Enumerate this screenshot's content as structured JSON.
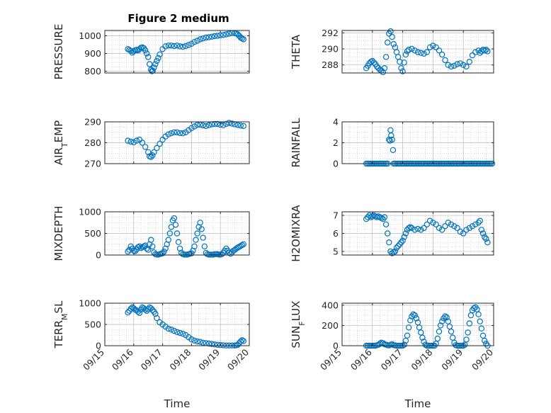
{
  "figure": {
    "title": "Figure 2 medium",
    "marker_color": "#0072BD",
    "axes_color": "#262626",
    "grid_color": "#b8b8b8"
  },
  "chart_data": [
    {
      "type": "scatter",
      "ylabel": "PRESSURE",
      "xlabel": "",
      "xlim": [
        15,
        20
      ],
      "ylim": [
        790,
        1030
      ],
      "yticks": [
        800,
        900,
        1000
      ],
      "xticks": [],
      "grid": true,
      "marker": "open-circle",
      "x": [
        15.8,
        15.85,
        15.9,
        15.95,
        16.0,
        16.05,
        16.1,
        16.15,
        16.2,
        16.25,
        16.3,
        16.35,
        16.4,
        16.45,
        16.5,
        16.55,
        16.6,
        16.63,
        16.66,
        16.7,
        16.75,
        16.8,
        16.85,
        16.9,
        17.0,
        17.1,
        17.2,
        17.3,
        17.4,
        17.5,
        17.6,
        17.7,
        17.8,
        17.9,
        18.0,
        18.1,
        18.2,
        18.3,
        18.4,
        18.5,
        18.6,
        18.7,
        18.8,
        18.9,
        19.0,
        19.1,
        19.2,
        19.3,
        19.4,
        19.5,
        19.55,
        19.6,
        19.65,
        19.7,
        19.75,
        19.8
      ],
      "y": [
        925,
        920,
        915,
        905,
        912,
        918,
        920,
        917,
        925,
        932,
        935,
        930,
        918,
        900,
        880,
        840,
        808,
        800,
        803,
        820,
        840,
        858,
        875,
        895,
        925,
        940,
        945,
        945,
        942,
        945,
        940,
        938,
        942,
        948,
        955,
        965,
        972,
        980,
        985,
        990,
        992,
        995,
        998,
        1000,
        1003,
        1005,
        1008,
        1012,
        1015,
        1015,
        1012,
        1008,
        1000,
        990,
        985,
        980
      ]
    },
    {
      "type": "scatter",
      "ylabel": "THETA",
      "xlabel": "",
      "xlim": [
        15,
        20
      ],
      "ylim": [
        287.0,
        292.3
      ],
      "yticks": [
        288,
        290,
        292
      ],
      "xticks": [],
      "grid": true,
      "marker": "open-circle",
      "x": [
        15.8,
        15.85,
        15.9,
        15.95,
        16.0,
        16.05,
        16.1,
        16.15,
        16.2,
        16.25,
        16.3,
        16.35,
        16.4,
        16.45,
        16.5,
        16.55,
        16.6,
        16.65,
        16.7,
        16.75,
        16.8,
        16.85,
        16.9,
        16.95,
        17.0,
        17.05,
        17.1,
        17.15,
        17.2,
        17.3,
        17.4,
        17.5,
        17.6,
        17.7,
        17.8,
        17.9,
        18.0,
        18.1,
        18.2,
        18.3,
        18.4,
        18.5,
        18.6,
        18.7,
        18.8,
        18.9,
        19.0,
        19.1,
        19.2,
        19.3,
        19.4,
        19.5,
        19.55,
        19.6,
        19.65,
        19.7,
        19.75,
        19.8
      ],
      "y": [
        287.6,
        287.9,
        288.2,
        288.4,
        288.5,
        288.3,
        288.1,
        287.8,
        287.6,
        287.4,
        287.3,
        287.1,
        287.6,
        289.0,
        290.8,
        291.9,
        292.2,
        291.5,
        290.6,
        290.2,
        289.6,
        289.0,
        288.4,
        287.6,
        287.2,
        288.3,
        289.3,
        289.7,
        289.9,
        290.0,
        289.8,
        289.6,
        289.5,
        289.4,
        289.6,
        290.2,
        290.4,
        290.2,
        289.8,
        289.3,
        288.6,
        288.0,
        287.8,
        287.9,
        288.1,
        288.2,
        288.0,
        287.8,
        288.4,
        289.2,
        289.6,
        289.8,
        289.5,
        289.7,
        289.9,
        289.8,
        289.9,
        289.7
      ]
    },
    {
      "type": "scatter",
      "ylabel": "AIR_TEMP",
      "xlabel": "",
      "xlim": [
        15,
        20
      ],
      "ylim": [
        270,
        290
      ],
      "yticks": [
        270,
        280,
        290
      ],
      "xticks": [],
      "grid": true,
      "marker": "open-circle",
      "x": [
        15.8,
        15.9,
        16.0,
        16.1,
        16.2,
        16.3,
        16.4,
        16.5,
        16.55,
        16.6,
        16.65,
        16.7,
        16.8,
        16.9,
        17.0,
        17.1,
        17.2,
        17.3,
        17.4,
        17.5,
        17.6,
        17.7,
        17.8,
        17.9,
        18.0,
        18.1,
        18.2,
        18.3,
        18.4,
        18.5,
        18.6,
        18.7,
        18.8,
        18.9,
        19.0,
        19.1,
        19.2,
        19.3,
        19.4,
        19.5,
        19.6,
        19.7,
        19.8
      ],
      "y": [
        281.0,
        280.5,
        280.2,
        281.0,
        281.5,
        280.0,
        278.0,
        275.5,
        273.5,
        273.2,
        274.0,
        275.5,
        277.5,
        279.5,
        281.5,
        283.0,
        284.0,
        284.5,
        285.0,
        285.0,
        284.6,
        284.5,
        285.0,
        286.0,
        287.0,
        287.8,
        288.5,
        288.6,
        288.3,
        288.0,
        288.4,
        288.8,
        289.0,
        289.0,
        288.6,
        288.4,
        289.0,
        289.5,
        289.2,
        288.8,
        288.5,
        288.2,
        288.0
      ]
    },
    {
      "type": "scatter",
      "ylabel": "RAINFALL",
      "xlabel": "",
      "xlim": [
        15,
        20
      ],
      "ylim": [
        0,
        4
      ],
      "yticks": [
        0,
        2,
        4
      ],
      "xticks": [],
      "grid": true,
      "marker": "open-circle",
      "x": [
        15.8,
        15.85,
        15.9,
        15.95,
        16.0,
        16.05,
        16.1,
        16.15,
        16.2,
        16.25,
        16.3,
        16.35,
        16.4,
        16.45,
        16.5,
        16.55,
        16.58,
        16.6,
        16.62,
        16.65,
        16.68,
        16.7,
        16.75,
        16.8,
        16.85,
        16.9,
        16.95,
        17.0,
        17.05,
        17.1,
        17.15,
        17.2,
        17.25,
        17.3,
        17.35,
        17.4,
        17.45,
        17.5,
        17.55,
        17.6,
        17.65,
        17.7,
        17.75,
        17.8,
        17.85,
        17.9,
        17.95,
        18.0,
        18.05,
        18.1,
        18.15,
        18.2,
        18.25,
        18.3,
        18.35,
        18.4,
        18.45,
        18.5,
        18.55,
        18.6,
        18.65,
        18.7,
        18.75,
        18.8,
        18.85,
        18.9,
        18.95,
        19.0,
        19.05,
        19.1,
        19.15,
        19.2,
        19.25,
        19.3,
        19.35,
        19.4,
        19.45,
        19.5,
        19.55,
        19.6,
        19.65,
        19.7,
        19.75,
        19.8,
        19.85,
        19.9,
        19.95
      ],
      "y": [
        0,
        0,
        0,
        0,
        0,
        0,
        0,
        0,
        0,
        0,
        0,
        0,
        0,
        0,
        0,
        2.3,
        2.2,
        3.2,
        2.7,
        2.3,
        1.3,
        0,
        0,
        0,
        0,
        0,
        0,
        0,
        0,
        0,
        0,
        0,
        0,
        0,
        0,
        0,
        0,
        0,
        0,
        0,
        0,
        0,
        0,
        0,
        0,
        0,
        0,
        0,
        0,
        0,
        0,
        0,
        0,
        0,
        0,
        0,
        0,
        0,
        0,
        0,
        0,
        0,
        0,
        0,
        0,
        0,
        0,
        0,
        0,
        0,
        0,
        0,
        0,
        0,
        0,
        0,
        0,
        0,
        0,
        0,
        0,
        0,
        0,
        0,
        0,
        0,
        0
      ]
    },
    {
      "type": "scatter",
      "ylabel": "MIXDEPTH",
      "xlabel": "",
      "xlim": [
        15,
        20
      ],
      "ylim": [
        0,
        1000
      ],
      "yticks": [
        0,
        500,
        1000
      ],
      "xticks": [],
      "grid": true,
      "marker": "open-circle",
      "x": [
        15.8,
        15.85,
        15.9,
        15.95,
        16.0,
        16.05,
        16.1,
        16.15,
        16.2,
        16.25,
        16.3,
        16.35,
        16.4,
        16.45,
        16.5,
        16.55,
        16.6,
        16.65,
        16.7,
        16.75,
        16.8,
        16.85,
        16.9,
        16.95,
        17.0,
        17.05,
        17.1,
        17.15,
        17.2,
        17.25,
        17.3,
        17.35,
        17.4,
        17.45,
        17.5,
        17.55,
        17.6,
        17.65,
        17.7,
        17.75,
        17.8,
        17.85,
        17.9,
        17.95,
        18.0,
        18.05,
        18.1,
        18.15,
        18.2,
        18.25,
        18.3,
        18.35,
        18.4,
        18.45,
        18.5,
        18.55,
        18.6,
        18.65,
        18.7,
        18.75,
        18.8,
        18.85,
        18.9,
        18.95,
        19.0,
        19.05,
        19.1,
        19.15,
        19.2,
        19.25,
        19.3,
        19.35,
        19.4,
        19.45,
        19.5,
        19.55,
        19.6,
        19.65,
        19.7,
        19.75,
        19.8
      ],
      "y": [
        80,
        120,
        200,
        150,
        100,
        90,
        130,
        180,
        200,
        160,
        180,
        200,
        220,
        150,
        120,
        250,
        350,
        200,
        60,
        20,
        10,
        10,
        20,
        30,
        40,
        80,
        150,
        250,
        350,
        500,
        650,
        800,
        850,
        700,
        500,
        300,
        150,
        50,
        20,
        10,
        10,
        10,
        20,
        30,
        40,
        100,
        200,
        350,
        500,
        650,
        750,
        600,
        400,
        200,
        50,
        20,
        10,
        10,
        10,
        10,
        20,
        20,
        20,
        10,
        10,
        20,
        50,
        100,
        150,
        100,
        50,
        30,
        60,
        100,
        120,
        150,
        170,
        190,
        210,
        230,
        250
      ]
    },
    {
      "type": "scatter",
      "ylabel": "H2OMIXRA",
      "xlabel": "",
      "xlim": [
        15,
        20
      ],
      "ylim": [
        4.8,
        7.2
      ],
      "yticks": [
        5,
        6,
        7
      ],
      "xticks": [],
      "grid": true,
      "marker": "open-circle",
      "x": [
        15.8,
        15.85,
        15.9,
        15.95,
        16.0,
        16.05,
        16.1,
        16.15,
        16.2,
        16.25,
        16.3,
        16.35,
        16.4,
        16.45,
        16.5,
        16.55,
        16.6,
        16.65,
        16.7,
        16.75,
        16.8,
        16.85,
        16.9,
        16.95,
        17.0,
        17.05,
        17.1,
        17.15,
        17.2,
        17.25,
        17.3,
        17.4,
        17.5,
        17.6,
        17.7,
        17.8,
        17.9,
        18.0,
        18.1,
        18.2,
        18.3,
        18.4,
        18.5,
        18.6,
        18.7,
        18.8,
        18.9,
        19.0,
        19.1,
        19.2,
        19.3,
        19.4,
        19.5,
        19.55,
        19.6,
        19.65,
        19.7,
        19.75,
        19.8
      ],
      "y": [
        6.8,
        6.9,
        7.0,
        6.9,
        6.95,
        7.0,
        6.95,
        6.9,
        6.95,
        6.9,
        6.85,
        6.8,
        6.9,
        6.5,
        6.0,
        5.5,
        5.0,
        4.9,
        4.95,
        5.0,
        5.2,
        5.3,
        5.4,
        5.5,
        5.6,
        5.8,
        6.0,
        6.2,
        6.3,
        6.35,
        6.3,
        6.2,
        6.25,
        6.2,
        6.3,
        6.5,
        6.7,
        6.6,
        6.5,
        6.3,
        6.2,
        6.4,
        6.6,
        6.5,
        6.4,
        6.3,
        6.1,
        6.0,
        6.2,
        6.3,
        6.4,
        6.5,
        6.6,
        6.7,
        6.2,
        6.0,
        5.8,
        5.7,
        5.5
      ]
    },
    {
      "type": "scatter",
      "ylabel": "TERR_MSL",
      "xlabel": "Time",
      "xlim": [
        15,
        20
      ],
      "ylim": [
        0,
        1000
      ],
      "yticks": [
        0,
        500,
        1000
      ],
      "xticks": [
        "09/15",
        "09/16",
        "09/17",
        "09/18",
        "09/19",
        "09/20"
      ],
      "grid": true,
      "marker": "open-circle",
      "x": [
        15.8,
        15.85,
        15.9,
        15.95,
        16.0,
        16.05,
        16.1,
        16.15,
        16.2,
        16.25,
        16.3,
        16.35,
        16.4,
        16.45,
        16.5,
        16.55,
        16.6,
        16.65,
        16.7,
        16.75,
        16.8,
        16.9,
        17.0,
        17.1,
        17.2,
        17.3,
        17.4,
        17.5,
        17.6,
        17.7,
        17.8,
        17.9,
        18.0,
        18.1,
        18.2,
        18.3,
        18.4,
        18.5,
        18.6,
        18.7,
        18.8,
        18.9,
        19.0,
        19.1,
        19.2,
        19.3,
        19.4,
        19.5,
        19.55,
        19.6,
        19.65,
        19.7,
        19.75,
        19.8
      ],
      "y": [
        780,
        820,
        870,
        900,
        880,
        850,
        830,
        800,
        770,
        850,
        900,
        880,
        850,
        820,
        860,
        900,
        880,
        840,
        800,
        750,
        650,
        550,
        500,
        450,
        400,
        380,
        350,
        320,
        300,
        280,
        250,
        200,
        150,
        120,
        100,
        90,
        70,
        60,
        50,
        40,
        30,
        20,
        15,
        10,
        5,
        5,
        5,
        5,
        10,
        20,
        60,
        100,
        130,
        110
      ]
    },
    {
      "type": "scatter",
      "ylabel": "SUN_FLUX",
      "xlabel": "Time",
      "xlim": [
        15,
        20
      ],
      "ylim": [
        0,
        420
      ],
      "yticks": [
        0,
        200,
        400
      ],
      "xticks": [
        "09/15",
        "09/16",
        "09/17",
        "09/18",
        "09/19",
        "09/20"
      ],
      "grid": true,
      "marker": "open-circle",
      "x": [
        15.8,
        15.85,
        15.9,
        15.95,
        16.0,
        16.05,
        16.1,
        16.15,
        16.2,
        16.25,
        16.3,
        16.35,
        16.4,
        16.45,
        16.5,
        16.55,
        16.6,
        16.65,
        16.7,
        16.75,
        16.8,
        16.85,
        16.9,
        16.95,
        17.0,
        17.05,
        17.1,
        17.15,
        17.2,
        17.25,
        17.3,
        17.35,
        17.4,
        17.45,
        17.5,
        17.55,
        17.6,
        17.65,
        17.7,
        17.75,
        17.8,
        17.85,
        17.9,
        17.95,
        18.0,
        18.05,
        18.1,
        18.15,
        18.2,
        18.25,
        18.3,
        18.35,
        18.4,
        18.45,
        18.5,
        18.55,
        18.6,
        18.65,
        18.7,
        18.75,
        18.8,
        18.85,
        18.9,
        18.95,
        19.0,
        19.05,
        19.1,
        19.15,
        19.2,
        19.25,
        19.3,
        19.35,
        19.4,
        19.45,
        19.5,
        19.55,
        19.6,
        19.65,
        19.7,
        19.75,
        19.8
      ],
      "y": [
        0,
        0,
        0,
        0,
        0,
        0,
        0,
        5,
        10,
        20,
        30,
        25,
        15,
        10,
        5,
        3,
        10,
        15,
        5,
        3,
        0,
        0,
        0,
        0,
        0,
        10,
        50,
        100,
        180,
        250,
        290,
        310,
        300,
        270,
        230,
        180,
        130,
        80,
        40,
        10,
        0,
        0,
        0,
        0,
        0,
        0,
        20,
        70,
        140,
        200,
        240,
        270,
        290,
        280,
        240,
        190,
        140,
        80,
        30,
        5,
        0,
        0,
        0,
        0,
        0,
        10,
        60,
        130,
        220,
        300,
        350,
        370,
        380,
        360,
        310,
        240,
        170,
        100,
        50,
        20,
        0
      ]
    }
  ]
}
